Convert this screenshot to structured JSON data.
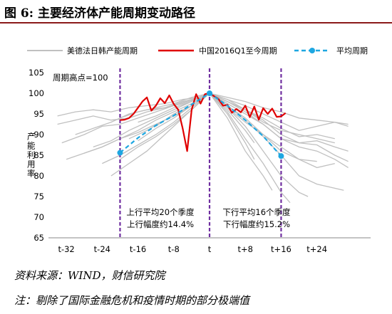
{
  "figure": {
    "title": "图 6:  主要经济体产能周期变动路径",
    "source": "资料来源：WIND，财信研究院",
    "note": "注：剔除了国际金融危机和疫情时期的部分极端值"
  },
  "chart_data": {
    "type": "line",
    "ylabel": "产能利用率",
    "ylim": [
      65,
      105
    ],
    "yticks": [
      "65",
      "70",
      "75",
      "80",
      "85",
      "90",
      "95",
      "100",
      "105"
    ],
    "xlim": [
      -36,
      36
    ],
    "xticks": [
      {
        "x": -32,
        "label": "t-32"
      },
      {
        "x": -24,
        "label": "t-24"
      },
      {
        "x": -16,
        "label": "t-16"
      },
      {
        "x": -8,
        "label": "t-8"
      },
      {
        "x": 0,
        "label": "t"
      },
      {
        "x": 8,
        "label": "t+8"
      },
      {
        "x": 16,
        "label": "t+16"
      },
      {
        "x": 24,
        "label": "t+24"
      }
    ],
    "peak_label": "周期高点=100",
    "vlines": [
      -20,
      0,
      16
    ],
    "annotations": [
      {
        "lines": [
          "上行平均20个季度",
          "上行幅度约14.4%"
        ]
      },
      {
        "lines": [
          "下行平均16个季度",
          "下行幅度约15.2%"
        ]
      }
    ],
    "colors": {
      "background_series": "#c0c0c0",
      "china": "#e00000",
      "average": "#1ea7e1",
      "vline": "#7030a0"
    },
    "series": [
      {
        "name": "美德法日韩产能周期",
        "style": "gray"
      },
      {
        "name": "中国2016Q1至今周期",
        "style": "red",
        "x": [
          -20,
          -19,
          -18,
          -17,
          -16,
          -15,
          -14,
          -13,
          -12,
          -11,
          -10,
          -9,
          -8,
          -7,
          -6,
          -5,
          -4,
          -3,
          -2,
          -1,
          0,
          1,
          2,
          3,
          4,
          5,
          6,
          7,
          8,
          9,
          10,
          11,
          12,
          13,
          14,
          15,
          16,
          17
        ],
        "y": [
          93.5,
          93.6,
          94.0,
          95.0,
          96.5,
          98.0,
          99.0,
          95.8,
          97.0,
          98.8,
          97.6,
          99.5,
          97.4,
          96.0,
          91.5,
          86.0,
          96.0,
          99.8,
          97.5,
          99.8,
          100,
          99.3,
          98.6,
          97.0,
          97.2,
          95.3,
          96.2,
          95.4,
          97.0,
          94.2,
          96.8,
          93.6,
          96.4,
          95.0,
          96.3,
          94.3,
          94.4,
          95.2
        ]
      },
      {
        "name": "平均周期",
        "style": "blue-dashed",
        "x": [
          -20,
          -16,
          -12,
          -8,
          -4,
          0,
          4,
          8,
          12,
          16
        ],
        "y": [
          85.6,
          89.2,
          92.2,
          94.6,
          97.3,
          100,
          97.0,
          93.5,
          89.6,
          84.8
        ]
      }
    ],
    "background_series": [
      {
        "x": [
          -34,
          -30,
          -26,
          -22,
          -18,
          -14,
          -10,
          -6,
          -2,
          0,
          4,
          8,
          12,
          16,
          20,
          24,
          28,
          31
        ],
        "y": [
          94.5,
          95.5,
          96.0,
          95.5,
          96.5,
          97.0,
          97.5,
          98.5,
          99.0,
          100,
          98.5,
          97.0,
          95.0,
          93.0,
          91.0,
          92.0,
          93.0,
          92.0
        ]
      },
      {
        "x": [
          -33,
          -28,
          -24,
          -20,
          -16,
          -12,
          -8,
          -4,
          0,
          4,
          8,
          12,
          16,
          20,
          24,
          28,
          31
        ],
        "y": [
          88.0,
          90.0,
          92.0,
          92.5,
          94.0,
          95.5,
          97.0,
          98.5,
          100,
          97.5,
          95.0,
          92.5,
          89.0,
          87.0,
          86.0,
          84.0,
          82.0
        ]
      },
      {
        "x": [
          -32,
          -28,
          -24,
          -20,
          -16,
          -12,
          -8,
          -4,
          0,
          4,
          8,
          12,
          16,
          20,
          24,
          28,
          31
        ],
        "y": [
          84.0,
          85.5,
          87.0,
          89.0,
          90.5,
          92.5,
          94.5,
          97.0,
          100,
          98.0,
          96.0,
          93.5,
          90.0,
          88.0,
          87.5,
          85.0,
          83.5
        ]
      },
      {
        "x": [
          -30,
          -26,
          -22,
          -18,
          -14,
          -10,
          -6,
          -2,
          0,
          4,
          8,
          12,
          16,
          20,
          24,
          28
        ],
        "y": [
          90.0,
          91.5,
          93.0,
          95.0,
          96.0,
          96.5,
          98.0,
          99.0,
          100,
          96.5,
          93.0,
          90.0,
          87.0,
          84.0,
          82.0,
          83.0
        ]
      },
      {
        "x": [
          -34,
          -30,
          -26,
          -22,
          -18,
          -14,
          -10,
          -6,
          -2,
          0,
          4,
          8,
          12,
          16,
          20,
          24,
          28,
          31
        ],
        "y": [
          92.5,
          93.5,
          94.5,
          93.5,
          94.0,
          95.5,
          96.5,
          97.5,
          99.0,
          100,
          98.0,
          95.5,
          92.5,
          89.0,
          88.0,
          88.5,
          87.0,
          86.0
        ]
      },
      {
        "x": [
          -24,
          -20,
          -16,
          -12,
          -8,
          -4,
          0,
          4,
          8,
          12,
          16,
          20,
          24,
          28,
          30
        ],
        "y": [
          83.0,
          85.0,
          87.5,
          90.0,
          93.0,
          96.5,
          100,
          97.0,
          93.5,
          89.5,
          85.0,
          80.0,
          78.0,
          77.0,
          76.5
        ]
      },
      {
        "x": [
          -20,
          -16,
          -12,
          -8,
          -4,
          0,
          4,
          8,
          12,
          16,
          20,
          22
        ],
        "y": [
          84.0,
          87.0,
          89.5,
          92.5,
          96.0,
          100,
          96.5,
          92.0,
          86.0,
          80.0,
          76.0,
          75.0
        ]
      },
      {
        "x": [
          -18,
          -14,
          -10,
          -6,
          -2,
          0,
          4,
          8,
          12,
          16,
          18
        ],
        "y": [
          89.0,
          91.0,
          93.5,
          95.5,
          98.5,
          100,
          95.5,
          89.0,
          83.0,
          76.0,
          73.5
        ]
      },
      {
        "x": [
          -16,
          -12,
          -8,
          -4,
          0,
          4,
          8,
          12,
          14
        ],
        "y": [
          88.5,
          91.5,
          94.0,
          97.0,
          100,
          94.0,
          86.0,
          80.0,
          76.5
        ]
      },
      {
        "x": [
          -28,
          -24,
          -20,
          -16,
          -12,
          -8,
          -4,
          0,
          4,
          8,
          12,
          16,
          20,
          24,
          28
        ],
        "y": [
          85.5,
          87.0,
          89.0,
          91.0,
          93.5,
          95.5,
          97.5,
          100,
          98.5,
          96.0,
          94.0,
          91.5,
          89.5,
          90.0,
          89.0
        ]
      },
      {
        "x": [
          -22,
          -18,
          -14,
          -10,
          -6,
          -2,
          0,
          4,
          8,
          10
        ],
        "y": [
          80.0,
          83.0,
          86.0,
          90.0,
          94.0,
          98.0,
          100,
          95.0,
          88.0,
          84.0
        ]
      },
      {
        "x": [
          -16,
          -12,
          -8,
          -4,
          0,
          4,
          8,
          12,
          16,
          20,
          24,
          28,
          31
        ],
        "y": [
          93.0,
          94.5,
          96.5,
          98.0,
          100,
          99.0,
          98.0,
          96.5,
          95.5,
          94.0,
          93.5,
          93.0,
          92.5
        ]
      },
      {
        "x": [
          -12,
          -8,
          -4,
          0,
          4,
          8,
          10
        ],
        "y": [
          92.0,
          95.0,
          97.0,
          100,
          96.0,
          91.0,
          88.0
        ]
      },
      {
        "x": [
          -26,
          -22,
          -18,
          -14,
          -10,
          -6,
          -2,
          0,
          4,
          8,
          12,
          16,
          20,
          24
        ],
        "y": [
          87.0,
          88.5,
          91.0,
          93.0,
          95.0,
          97.0,
          99.0,
          100,
          97.0,
          94.0,
          90.0,
          86.0,
          84.0,
          83.5
        ]
      },
      {
        "x": [
          -20,
          -16,
          -12,
          -8,
          -4,
          0,
          4,
          8,
          12,
          16,
          20,
          24,
          28
        ],
        "y": [
          94.0,
          95.5,
          96.5,
          97.5,
          99.0,
          100,
          98.0,
          96.0,
          93.0,
          91.0,
          90.0,
          89.0,
          88.0
        ]
      }
    ]
  }
}
